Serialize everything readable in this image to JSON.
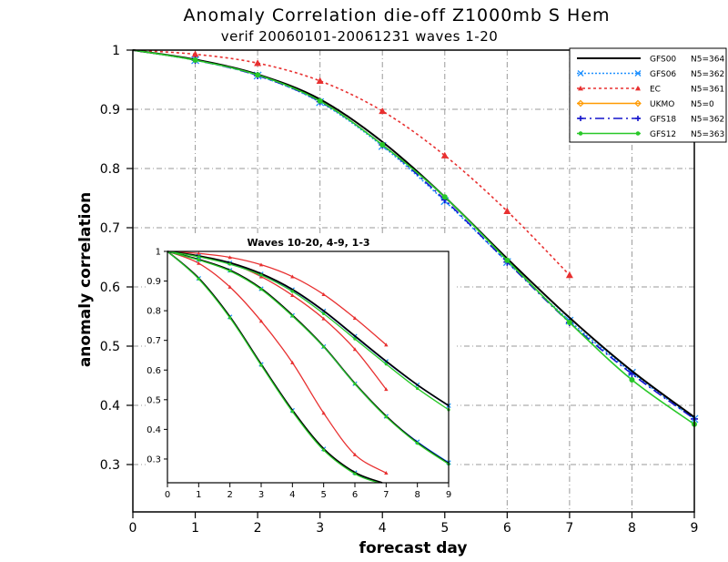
{
  "chart_data": [
    {
      "type": "line",
      "title": "Anomaly Correlation die-off   Z1000mb S Hem",
      "subtitle": "verif 20060101-20061231 waves 1-20",
      "xlabel": "forecast day",
      "ylabel": "anomaly correlation",
      "xlim": [
        0,
        9
      ],
      "ylim": [
        0.22,
        1.0
      ],
      "xticks": [
        "0",
        "1",
        "2",
        "3",
        "4",
        "5",
        "6",
        "7",
        "8",
        "9"
      ],
      "yticks": [
        "0.3",
        "0.4",
        "0.5",
        "0.6",
        "0.7",
        "0.8",
        "0.9",
        "1"
      ],
      "grid": true,
      "legend_position": "top-right",
      "series": [
        {
          "name": "GFS00",
          "n_label": "N5=364",
          "color": "#000000",
          "dash": "",
          "marker": "none",
          "x": [
            0,
            1,
            2,
            3,
            4,
            5,
            6,
            7,
            8,
            9
          ],
          "values": [
            1.0,
            0.984,
            0.959,
            0.917,
            0.845,
            0.752,
            0.648,
            0.548,
            0.458,
            0.38
          ]
        },
        {
          "name": "GFS06",
          "n_label": "N5=362",
          "color": "#1e90ff",
          "dash": "2,2",
          "marker": "x",
          "x": [
            0,
            1,
            2,
            3,
            4,
            5,
            6,
            7,
            8,
            9
          ],
          "values": [
            1.0,
            0.983,
            0.957,
            0.912,
            0.838,
            0.745,
            0.642,
            0.543,
            0.455,
            0.377
          ]
        },
        {
          "name": "EC",
          "n_label": "N5=361",
          "color": "#e83030",
          "dash": "3,3",
          "marker": "triangle",
          "x": [
            0,
            1,
            2,
            3,
            4,
            5,
            6,
            7
          ],
          "values": [
            1.0,
            0.993,
            0.978,
            0.948,
            0.897,
            0.822,
            0.728,
            0.62
          ]
        },
        {
          "name": "UKMO",
          "n_label": "N5=0",
          "color": "#ff9a00",
          "dash": "",
          "marker": "diamond",
          "x": [],
          "values": []
        },
        {
          "name": "GFS18",
          "n_label": "N5=362",
          "color": "#1414cc",
          "dash": "10,4,2,4",
          "marker": "plus",
          "x": [
            0,
            1,
            2,
            3,
            4,
            5,
            6,
            7,
            8,
            9
          ],
          "values": [
            1.0,
            0.983,
            0.957,
            0.913,
            0.84,
            0.747,
            0.642,
            0.54,
            0.453,
            0.377
          ]
        },
        {
          "name": "GFS12",
          "n_label": "N5=363",
          "color": "#28c828",
          "dash": "",
          "marker": "dot",
          "x": [
            0,
            1,
            2,
            3,
            4,
            5,
            6,
            7,
            8,
            9
          ],
          "values": [
            1.0,
            0.983,
            0.958,
            0.914,
            0.84,
            0.752,
            0.645,
            0.54,
            0.443,
            0.368
          ]
        }
      ]
    },
    {
      "type": "line",
      "title": "Waves 10-20, 4-9, 1-3",
      "xlim": [
        0,
        9
      ],
      "ylim": [
        0.22,
        1.0
      ],
      "xticks": [
        "0",
        "1",
        "2",
        "3",
        "4",
        "5",
        "6",
        "7",
        "8",
        "9"
      ],
      "yticks": [
        "0.3",
        "0.4",
        "0.5",
        "0.6",
        "0.7",
        "0.8",
        "0.9",
        "1"
      ],
      "grid": false,
      "groups": [
        {
          "name": "Waves 10-20",
          "series": [
            {
              "model": "GFS00",
              "color": "#000000",
              "x": [
                0,
                1,
                2,
                3,
                4,
                5,
                6,
                7
              ],
              "values": [
                1.0,
                0.91,
                0.78,
                0.62,
                0.465,
                0.335,
                0.255,
                0.215
              ]
            },
            {
              "model": "GFS06",
              "color": "#1e90ff",
              "x": [
                0,
                1,
                2,
                3,
                4,
                5,
                6,
                7
              ],
              "values": [
                1.0,
                0.909,
                0.779,
                0.619,
                0.464,
                0.334,
                0.254,
                0.214
              ]
            },
            {
              "model": "EC",
              "color": "#e83030",
              "x": [
                0,
                1,
                2,
                3,
                4,
                5,
                6,
                7
              ],
              "values": [
                1.0,
                0.96,
                0.88,
                0.765,
                0.625,
                0.455,
                0.315,
                0.253
              ]
            },
            {
              "model": "GFS18",
              "color": "#1414cc",
              "x": [
                0,
                1,
                2,
                3,
                4,
                5,
                6,
                7
              ],
              "values": [
                1.0,
                0.908,
                0.778,
                0.618,
                0.463,
                0.333,
                0.253,
                0.213
              ]
            },
            {
              "model": "GFS12",
              "color": "#28c828",
              "x": [
                0,
                1,
                2,
                3,
                4,
                5,
                6,
                7
              ],
              "values": [
                1.0,
                0.907,
                0.776,
                0.616,
                0.46,
                0.33,
                0.25,
                0.21
              ]
            }
          ]
        },
        {
          "name": "Waves 4-9",
          "series": [
            {
              "model": "GFS00",
              "color": "#000000",
              "x": [
                0,
                1,
                2,
                3,
                4,
                5,
                6,
                7,
                8,
                9
              ],
              "values": [
                1.0,
                0.973,
                0.937,
                0.875,
                0.785,
                0.68,
                0.555,
                0.445,
                0.355,
                0.285
              ]
            },
            {
              "model": "GFS06",
              "color": "#1e90ff",
              "x": [
                0,
                1,
                2,
                3,
                4,
                5,
                6,
                7,
                8,
                9
              ],
              "values": [
                1.0,
                0.972,
                0.936,
                0.874,
                0.784,
                0.679,
                0.554,
                0.444,
                0.358,
                0.288
              ]
            },
            {
              "model": "EC",
              "color": "#e83030",
              "x": [
                0,
                1,
                2,
                3,
                4,
                5,
                6,
                7
              ],
              "values": [
                1.0,
                0.985,
                0.96,
                0.915,
                0.852,
                0.773,
                0.67,
                0.535
              ]
            },
            {
              "model": "GFS18",
              "color": "#1414cc",
              "x": [
                0,
                1,
                2,
                3,
                4,
                5,
                6,
                7,
                8,
                9
              ],
              "values": [
                1.0,
                0.972,
                0.935,
                0.873,
                0.783,
                0.678,
                0.553,
                0.443,
                0.357,
                0.286
              ]
            },
            {
              "model": "GFS12",
              "color": "#28c828",
              "x": [
                0,
                1,
                2,
                3,
                4,
                5,
                6,
                7,
                8,
                9
              ],
              "values": [
                1.0,
                0.971,
                0.934,
                0.872,
                0.782,
                0.678,
                0.553,
                0.442,
                0.353,
                0.283
              ]
            }
          ]
        },
        {
          "name": "Waves 1-3",
          "series": [
            {
              "model": "GFS00",
              "color": "#000000",
              "x": [
                0,
                1,
                2,
                3,
                4,
                5,
                6,
                7,
                8,
                9
              ],
              "values": [
                1.0,
                0.985,
                0.962,
                0.925,
                0.872,
                0.8,
                0.715,
                0.63,
                0.55,
                0.48
              ]
            },
            {
              "model": "GFS06",
              "color": "#1e90ff",
              "x": [
                0,
                1,
                2,
                3,
                4,
                5,
                6,
                7,
                8,
                9
              ],
              "values": [
                1.0,
                0.984,
                0.961,
                0.924,
                0.871,
                0.799,
                0.714,
                0.629,
                0.55,
                0.48
              ]
            },
            {
              "model": "EC",
              "color": "#e83030",
              "x": [
                0,
                1,
                2,
                3,
                4,
                5,
                6,
                7
              ],
              "values": [
                1.0,
                0.993,
                0.98,
                0.955,
                0.915,
                0.855,
                0.775,
                0.685
              ]
            },
            {
              "model": "GFS18",
              "color": "#1414cc",
              "x": [
                0,
                1,
                2,
                3,
                4,
                5,
                6,
                7,
                8,
                9
              ],
              "values": [
                1.0,
                0.984,
                0.96,
                0.923,
                0.87,
                0.798,
                0.713,
                0.628,
                0.549,
                0.479
              ]
            },
            {
              "model": "GFS12",
              "color": "#28c828",
              "x": [
                0,
                1,
                2,
                3,
                4,
                5,
                6,
                7,
                8,
                9
              ],
              "values": [
                1.0,
                0.982,
                0.957,
                0.92,
                0.865,
                0.79,
                0.705,
                0.62,
                0.538,
                0.466
              ]
            }
          ]
        }
      ]
    }
  ]
}
